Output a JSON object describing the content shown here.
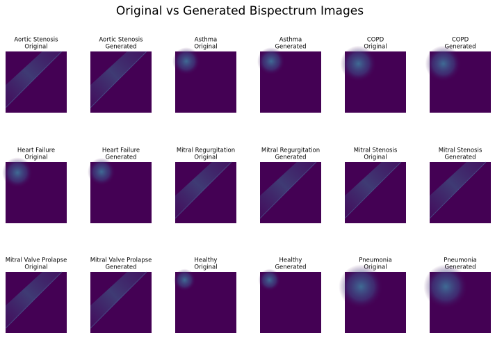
{
  "title": "Original vs Generated Bispectrum Images",
  "panels": [
    {
      "title": "Aortic Stenosis",
      "subtitle": "Original"
    },
    {
      "title": "Aortic Stenosis",
      "subtitle": "Generated"
    },
    {
      "title": "Asthma",
      "subtitle": "Original"
    },
    {
      "title": "Asthma",
      "subtitle": "Generated"
    },
    {
      "title": "COPD",
      "subtitle": "Original"
    },
    {
      "title": "COPD",
      "subtitle": "Generated"
    },
    {
      "title": "Heart Failure",
      "subtitle": "Original"
    },
    {
      "title": "Heart Failure",
      "subtitle": "Generated"
    },
    {
      "title": "Mitral Regurgitation",
      "subtitle": "Original"
    },
    {
      "title": "Mitral Regurgitation",
      "subtitle": "Generated"
    },
    {
      "title": "Mitral Stenosis",
      "subtitle": "Original"
    },
    {
      "title": "Mitral Stenosis",
      "subtitle": "Generated"
    },
    {
      "title": "Mitral Valve Prolapse",
      "subtitle": "Original"
    },
    {
      "title": "Mitral Valve Prolapse",
      "subtitle": "Generated"
    },
    {
      "title": "Healthy",
      "subtitle": "Original"
    },
    {
      "title": "Healthy",
      "subtitle": "Generated"
    },
    {
      "title": "Pneumonia",
      "subtitle": "Original"
    },
    {
      "title": "Pneumonia",
      "subtitle": "Generated"
    }
  ]
}
